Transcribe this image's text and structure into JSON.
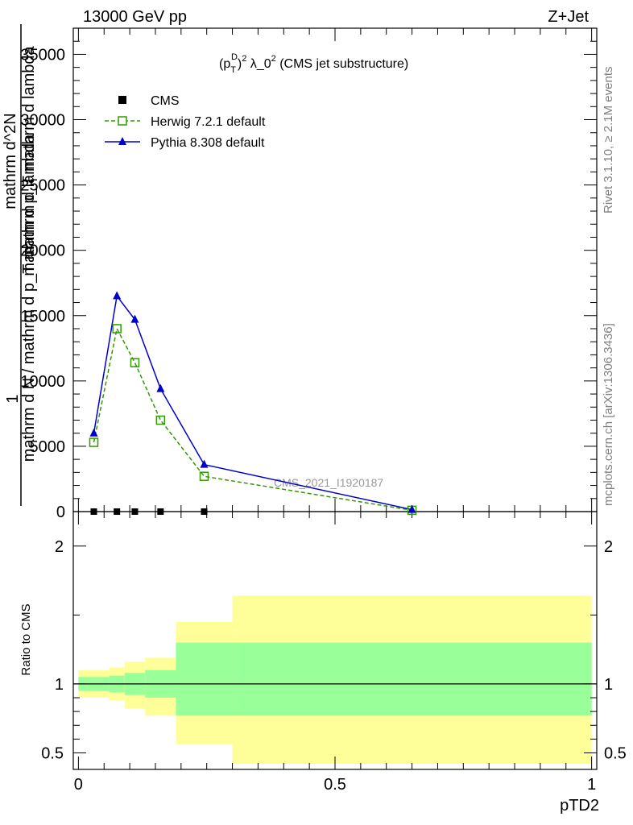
{
  "header": {
    "energy": "13000 GeV pp",
    "process": "Z+Jet",
    "title": "(p_T^D)^2 λ_0^2 (CMS jet substructure)",
    "title_base": "(p",
    "title_sub": "T",
    "title_sup1": "D",
    "title_mid": ")",
    "title_sup2": "2",
    "title_rest": " λ_0",
    "title_sup3": "2",
    "title_tail": " (CMS jet substructure)",
    "side_label": "Rivet 3.1.10, ≥ 2.1M events",
    "side_url": "mcplots.cern.ch [arXiv:1306.3436]",
    "watermark": "CMS_2021_I1920187"
  },
  "colors": {
    "herwig": "#339900",
    "pythia": "#0000cc",
    "cms": "#000000",
    "band_inner": "#99ff99",
    "band_outer": "#ffff99"
  },
  "chart_data": [
    {
      "type": "line",
      "panel": "main",
      "title": "(p_T^D)^2 λ_0^2 (CMS jet substructure)",
      "xlabel": "pTD2",
      "ylabel_lines": [
        "1",
        "mathrm d N / mathrm d p_T mathrm d lambda",
        "mathrm d^2N",
        "mathrm d p_T mathrm d lambda"
      ],
      "xlim": [
        -0.01,
        1.01
      ],
      "ylim": [
        0,
        37000
      ],
      "yticks": [
        0,
        5000,
        10000,
        15000,
        20000,
        25000,
        30000,
        35000
      ],
      "ytick_labels": [
        "0",
        "5000",
        "10000",
        "15000",
        "20000",
        "25000",
        "30000",
        "35000"
      ],
      "legend_position": "top-left",
      "series": [
        {
          "name": "CMS",
          "marker": "filled-square",
          "x": [
            0.03,
            0.075,
            0.11,
            0.16,
            0.245
          ],
          "y": [
            0,
            0,
            0,
            0,
            0
          ]
        },
        {
          "name": "Herwig 7.2.1 default",
          "marker": "open-square",
          "line": "dashed",
          "x": [
            0.03,
            0.075,
            0.11,
            0.16,
            0.245,
            0.65
          ],
          "y": [
            5300,
            14000,
            11400,
            7000,
            2700,
            100
          ]
        },
        {
          "name": "Pythia 8.308 default",
          "marker": "filled-triangle",
          "line": "solid",
          "x": [
            0.03,
            0.075,
            0.11,
            0.16,
            0.245,
            0.65
          ],
          "y": [
            6000,
            16500,
            14700,
            9400,
            3600,
            150
          ]
        }
      ]
    },
    {
      "type": "area",
      "panel": "ratio",
      "ylabel": "Ratio to CMS",
      "xlabel": "pTD2",
      "xlim": [
        -0.01,
        1.01
      ],
      "ylim": [
        0.38,
        2.25
      ],
      "xticks": [
        0,
        0.5,
        1
      ],
      "xtick_labels": [
        "0",
        "0.5",
        "1"
      ],
      "yticks": [
        0.5,
        1,
        2
      ],
      "ytick_labels": [
        "0.5",
        "1",
        "2"
      ],
      "bins": [
        0,
        0.06,
        0.09,
        0.13,
        0.19,
        0.3,
        1.0
      ],
      "inner_band_low": [
        0.95,
        0.94,
        0.92,
        0.9,
        0.77,
        0.77
      ],
      "inner_band_high": [
        1.05,
        1.06,
        1.08,
        1.1,
        1.3,
        1.3
      ],
      "outer_band_low": [
        0.9,
        0.88,
        0.82,
        0.77,
        0.56,
        0.42
      ],
      "outer_band_high": [
        1.1,
        1.12,
        1.16,
        1.19,
        1.45,
        1.64
      ],
      "reference_line": 1
    }
  ]
}
